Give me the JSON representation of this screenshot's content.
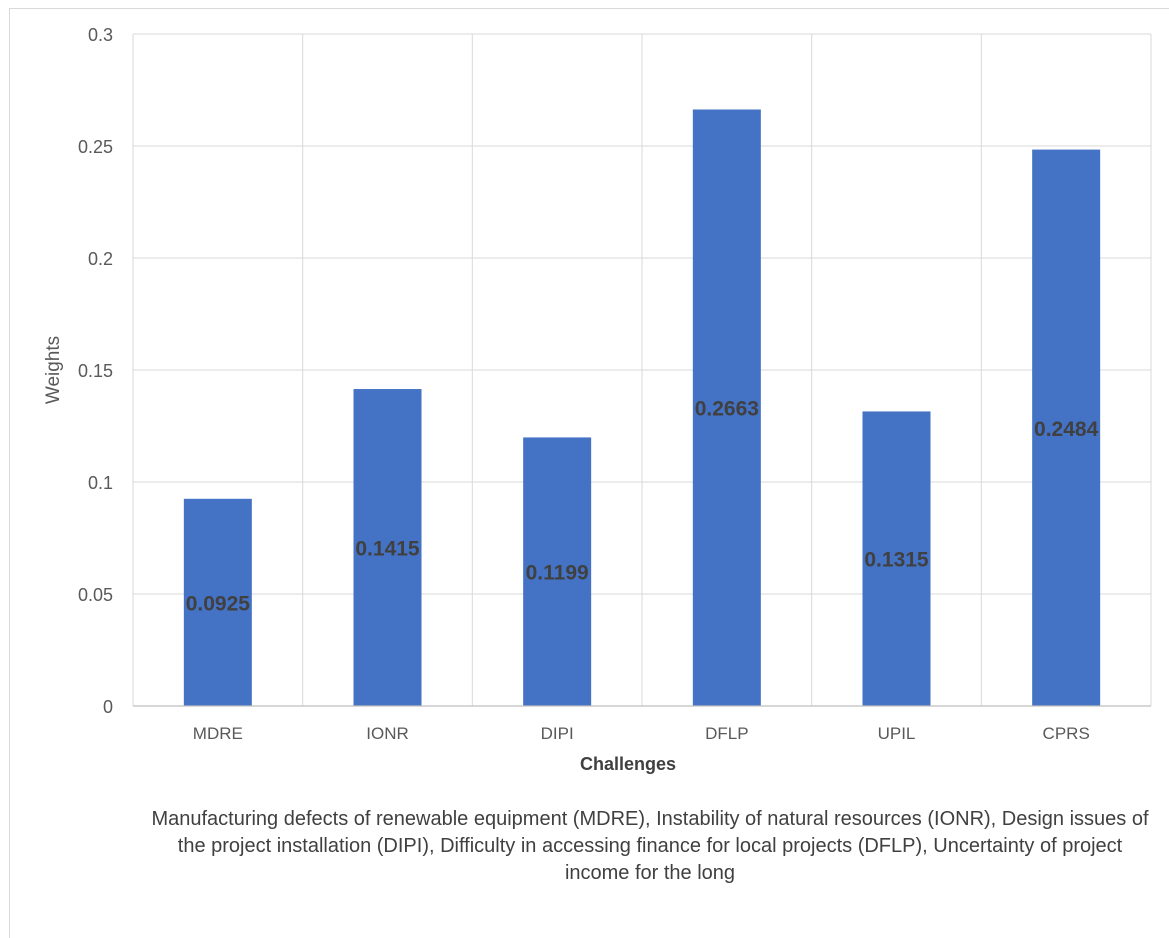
{
  "chart_data": {
    "type": "bar",
    "categories": [
      "MDRE",
      "IONR",
      "DIPI",
      "DFLP",
      "UPIL",
      "CPRS"
    ],
    "values": [
      0.0925,
      0.1415,
      0.1199,
      0.2663,
      0.1315,
      0.2484
    ],
    "data_labels": [
      "0.0925",
      "0.1415",
      "0.1199",
      "0.2663",
      "0.1315",
      "0.2484"
    ],
    "xlabel": "Challenges",
    "ylabel": "Weights",
    "ylim": [
      0,
      0.3
    ],
    "yticks": [
      0,
      0.05,
      0.1,
      0.15,
      0.2,
      0.25,
      0.3
    ],
    "ytick_labels": [
      "0",
      "0.05",
      "0.1",
      "0.15",
      "0.2",
      "0.25",
      "0.3"
    ],
    "grid": true,
    "legend": "none",
    "bar_color": "#4472c4",
    "note": "Manufacturing defects of renewable equipment (MDRE), Instability of natural resources (IONR), Design issues of the project installation (DIPI), Difficulty in accessing finance for local projects (DFLP), Uncertainty of project income for the long"
  }
}
